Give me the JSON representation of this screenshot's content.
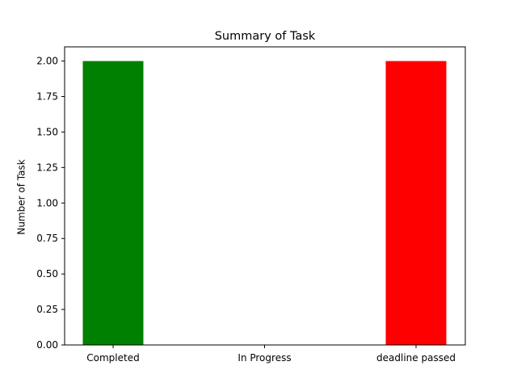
{
  "chart_data": {
    "type": "bar",
    "title": "Summary of Task",
    "xlabel": "",
    "ylabel": "Number of Task",
    "categories": [
      "Completed",
      "In Progress",
      "deadline passed"
    ],
    "values": [
      2,
      0,
      2
    ],
    "colors": [
      "#008000",
      "#0000ff",
      "#ff0000"
    ],
    "ylim": [
      0,
      2.1
    ],
    "yticks": [
      "0.00",
      "0.25",
      "0.50",
      "0.75",
      "1.00",
      "1.25",
      "1.50",
      "1.75",
      "2.00"
    ],
    "grid": false,
    "legend": "none"
  }
}
